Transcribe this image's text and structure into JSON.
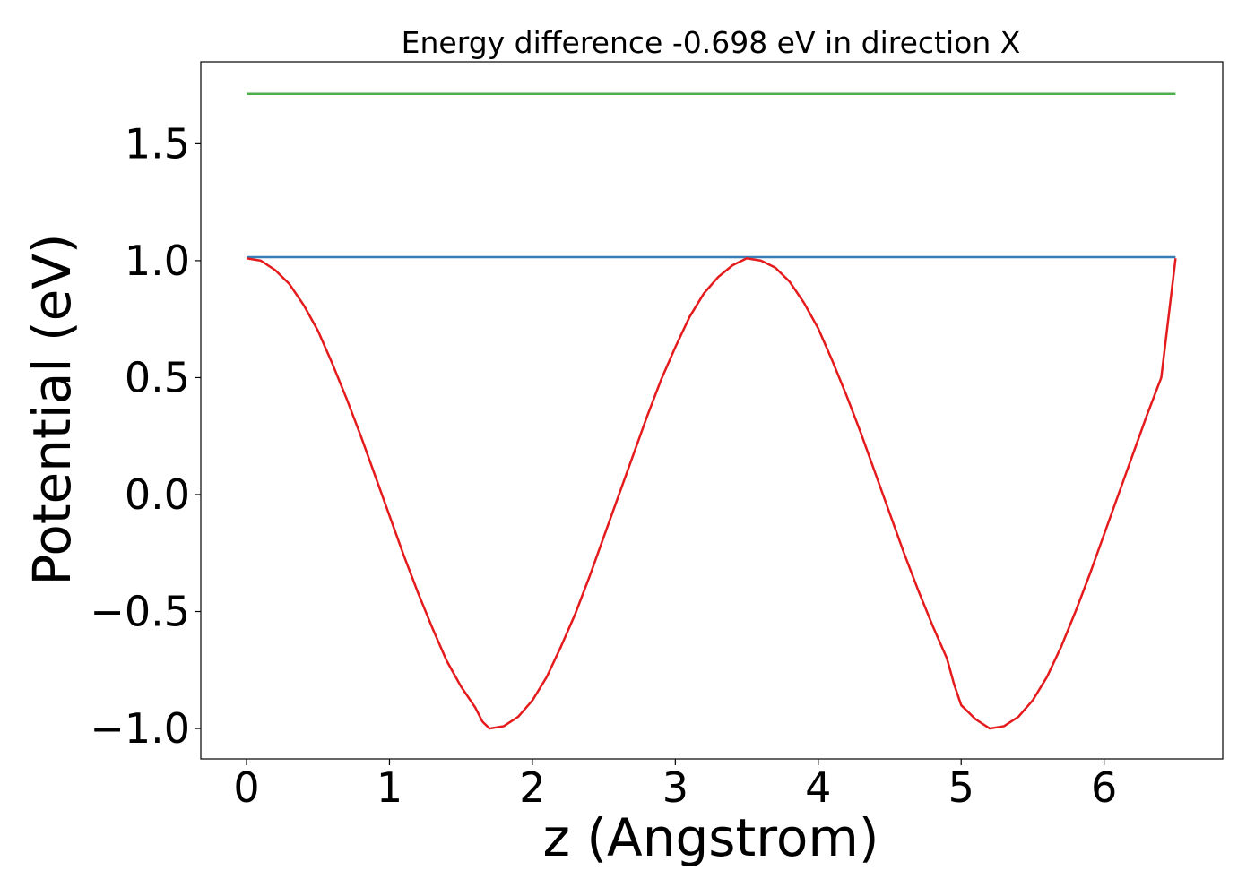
{
  "chart_data": {
    "type": "line",
    "title": "Energy difference -0.698 eV in direction X",
    "xlabel": "z (Angstrom)",
    "ylabel": "Potential (eV)",
    "xlim": [
      -0.32,
      6.83
    ],
    "ylim": [
      -1.13,
      1.85
    ],
    "xticks": [
      0,
      1,
      2,
      3,
      4,
      5,
      6
    ],
    "xtick_labels": [
      "0",
      "1",
      "2",
      "3",
      "4",
      "5",
      "6"
    ],
    "yticks": [
      -1.0,
      -0.5,
      0.0,
      0.5,
      1.0,
      1.5
    ],
    "ytick_labels": [
      "−1.0",
      "−0.5",
      "0.0",
      "0.5",
      "1.0",
      "1.5"
    ],
    "grid": false,
    "legend": false,
    "series": [
      {
        "color": "#e41a1c",
        "x": [
          0.0,
          0.1,
          0.2,
          0.3,
          0.4,
          0.5,
          0.6,
          0.7,
          0.8,
          0.9,
          1.0,
          1.1,
          1.2,
          1.3,
          1.4,
          1.5,
          1.6,
          1.65,
          1.7,
          1.8,
          1.9,
          2.0,
          2.1,
          2.2,
          2.3,
          2.4,
          2.5,
          2.6,
          2.7,
          2.8,
          2.9,
          3.0,
          3.1,
          3.2,
          3.3,
          3.4,
          3.5,
          3.6,
          3.7,
          3.8,
          3.9,
          4.0,
          4.1,
          4.2,
          4.3,
          4.4,
          4.5,
          4.6,
          4.7,
          4.8,
          4.9,
          4.95,
          5.0,
          5.1,
          5.2,
          5.3,
          5.4,
          5.5,
          5.6,
          5.7,
          5.8,
          5.9,
          6.0,
          6.1,
          6.2,
          6.3,
          6.4,
          6.5
        ],
        "y": [
          1.01,
          1.0,
          0.96,
          0.9,
          0.81,
          0.7,
          0.56,
          0.41,
          0.25,
          0.08,
          -0.09,
          -0.26,
          -0.42,
          -0.57,
          -0.71,
          -0.82,
          -0.91,
          -0.97,
          -1.0,
          -0.99,
          -0.95,
          -0.88,
          -0.78,
          -0.65,
          -0.51,
          -0.35,
          -0.18,
          -0.01,
          0.16,
          0.33,
          0.49,
          0.63,
          0.76,
          0.86,
          0.93,
          0.98,
          1.01,
          1.0,
          0.97,
          0.91,
          0.82,
          0.71,
          0.57,
          0.42,
          0.26,
          0.09,
          -0.08,
          -0.25,
          -0.41,
          -0.56,
          -0.7,
          -0.81,
          -0.9,
          -0.96,
          -1.0,
          -0.99,
          -0.95,
          -0.88,
          -0.78,
          -0.65,
          -0.5,
          -0.34,
          -0.17,
          0.0,
          0.17,
          0.34,
          0.5,
          1.01
        ]
      },
      {
        "color": "#377eb8",
        "x": [
          0.0,
          6.5
        ],
        "y": [
          1.015,
          1.015
        ]
      },
      {
        "color": "#4daf4a",
        "x": [
          0.0,
          6.5
        ],
        "y": [
          1.713,
          1.713
        ]
      }
    ]
  }
}
